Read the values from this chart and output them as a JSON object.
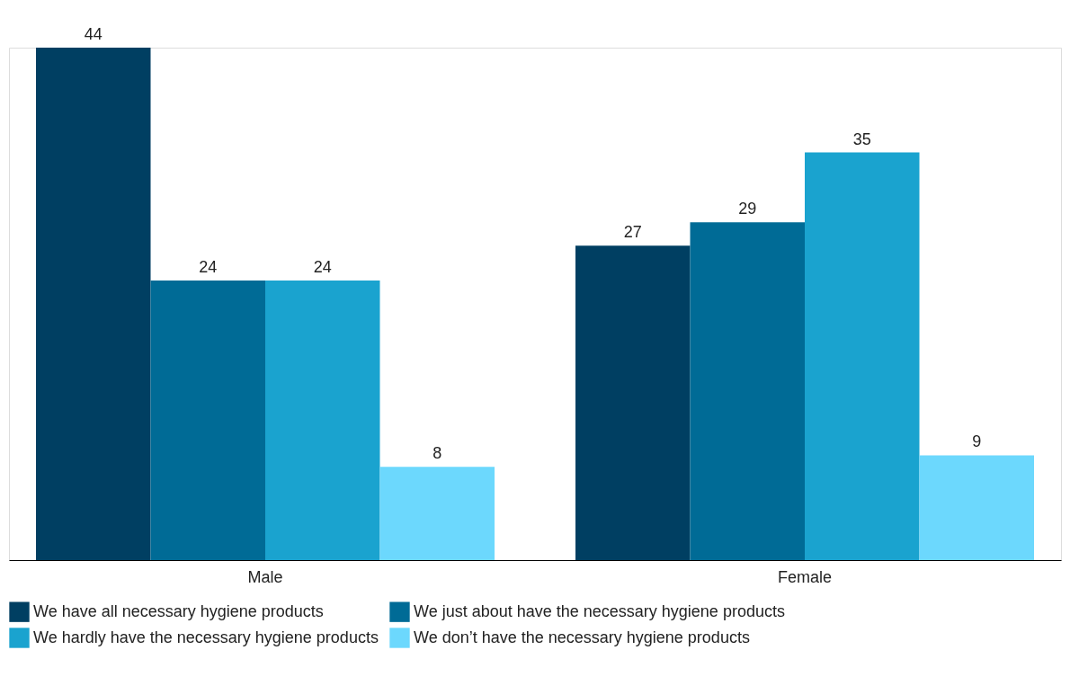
{
  "chart_data": {
    "type": "bar",
    "categories": [
      "Male",
      "Female"
    ],
    "series": [
      {
        "name": "We have all necessary hygiene products",
        "color": "#003f62",
        "values": [
          44,
          27
        ]
      },
      {
        "name": "We just about have the necessary hygiene products",
        "color": "#006b96",
        "values": [
          24,
          29
        ]
      },
      {
        "name": "We hardly have the necessary hygiene products",
        "color": "#1aa3cf",
        "values": [
          24,
          35
        ]
      },
      {
        "name": "We don’t have the necessary hygiene products",
        "color": "#6cd8fd",
        "values": [
          8,
          9
        ]
      }
    ],
    "data_labels": true,
    "legend": "bottom",
    "grid": false
  }
}
